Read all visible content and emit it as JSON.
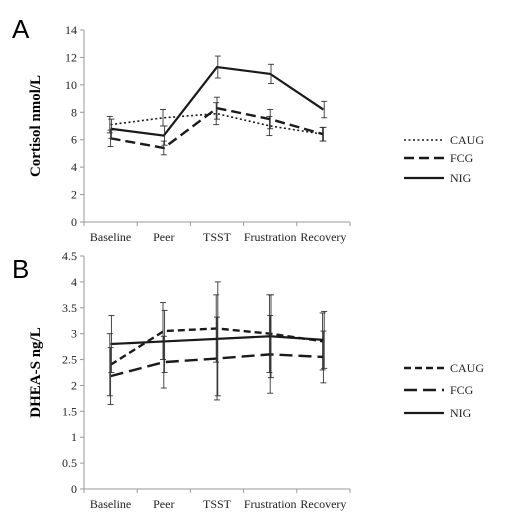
{
  "chart_data": [
    {
      "type": "line",
      "panel": "A",
      "ylabel": "Cortisol nmol/L",
      "categories": [
        "Baseline",
        "Peer",
        "TSST",
        "Frustration",
        "Recovery"
      ],
      "ylim": [
        0,
        14
      ],
      "yticks": [
        "0",
        "2",
        "4",
        "6",
        "8",
        "10",
        "12",
        "14"
      ],
      "legend_position": "right",
      "series": [
        {
          "name": "CAUG",
          "style": "dotted",
          "values": [
            7.1,
            7.6,
            7.9,
            7.0,
            6.4
          ],
          "errors": [
            0.6,
            0.6,
            0.8,
            0.7,
            0.5
          ]
        },
        {
          "name": "FCG",
          "style": "dashed",
          "values": [
            6.1,
            5.4,
            8.3,
            7.5,
            6.4
          ],
          "errors": [
            0.6,
            0.5,
            0.8,
            0.7,
            0.5
          ]
        },
        {
          "name": "NIG",
          "style": "solid",
          "values": [
            6.8,
            6.3,
            11.3,
            10.8,
            8.2
          ],
          "errors": [
            0.7,
            0.7,
            0.8,
            0.7,
            0.6
          ]
        }
      ]
    },
    {
      "type": "line",
      "panel": "B",
      "ylabel": "DHEA-S ng/L",
      "categories": [
        "Baseline",
        "Peer",
        "TSST",
        "Frustration",
        "Recovery"
      ],
      "ylim": [
        0,
        4.5
      ],
      "yticks": [
        "0",
        "0.5",
        "1",
        "1.5",
        "2",
        "2.5",
        "3",
        "3.5",
        "4",
        "4.5"
      ],
      "legend_position": "right",
      "series": [
        {
          "name": "CAUG",
          "style": "short-dash",
          "values": [
            2.4,
            3.05,
            3.1,
            3.0,
            2.85
          ],
          "errors": [
            0.6,
            0.55,
            0.65,
            0.75,
            0.55
          ]
        },
        {
          "name": "FCG",
          "style": "long-dash",
          "values": [
            2.18,
            2.45,
            2.52,
            2.6,
            2.55
          ],
          "errors": [
            0.55,
            0.5,
            0.8,
            0.75,
            0.5
          ]
        },
        {
          "name": "NIG",
          "style": "solid",
          "values": [
            2.8,
            2.85,
            2.9,
            2.95,
            2.88
          ],
          "errors": [
            0.55,
            0.6,
            1.1,
            0.8,
            0.55
          ]
        }
      ]
    }
  ]
}
